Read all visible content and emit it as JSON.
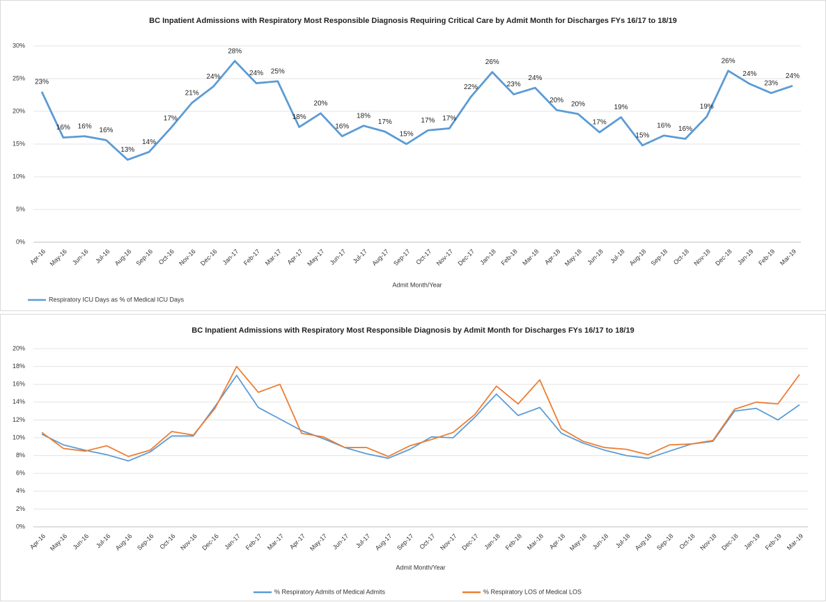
{
  "chart_data": [
    {
      "type": "line",
      "title": "BC Inpatient Admissions with Respiratory Most Responsible Diagnosis Requiring Critical Care by Admit Month for Discharges FYs 16/17 to 18/19",
      "x_label": "Admit Month/Year",
      "categories": [
        "Apr-16",
        "May-16",
        "Jun-16",
        "Jul-16",
        "Aug-16",
        "Sep-16",
        "Oct-16",
        "Nov-16",
        "Dec-16",
        "Jan-17",
        "Feb-17",
        "Mar-17",
        "Apr-17",
        "May-17",
        "Jun-17",
        "Jul-17",
        "Aug-17",
        "Sep-17",
        "Oct-17",
        "Nov-17",
        "Dec-17",
        "Jan-18",
        "Feb-18",
        "Mar-18",
        "Apr-18",
        "May-18",
        "Jun-18",
        "Jul-18",
        "Aug-18",
        "Sep-18",
        "Oct-18",
        "Nov-18",
        "Dec-18",
        "Jan-19",
        "Feb-19",
        "Mar-19"
      ],
      "series": [
        {
          "name": "Respiratory ICU Days as % of Medical ICU Days",
          "color": "#5b9bd5",
          "values": [
            23.0,
            16.0,
            16.2,
            15.6,
            12.6,
            13.8,
            17.4,
            21.3,
            23.8,
            27.7,
            24.3,
            24.6,
            17.6,
            19.7,
            16.2,
            17.8,
            16.9,
            15.0,
            17.1,
            17.4,
            22.2,
            26.0,
            22.6,
            23.6,
            20.2,
            19.6,
            16.8,
            19.1,
            14.8,
            16.3,
            15.8,
            19.2,
            26.2,
            24.2,
            22.8,
            23.9
          ],
          "value_labels": [
            "23%",
            "16%",
            "16%",
            "16%",
            "13%",
            "14%",
            "17%",
            "21%",
            "24%",
            "28%",
            "24%",
            "25%",
            "18%",
            "20%",
            "16%",
            "18%",
            "17%",
            "15%",
            "17%",
            "17%",
            "22%",
            "26%",
            "23%",
            "24%",
            "20%",
            "20%",
            "17%",
            "19%",
            "15%",
            "16%",
            "16%",
            "19%",
            "26%",
            "24%",
            "23%",
            "24%"
          ]
        }
      ],
      "ylim": [
        0,
        30
      ],
      "yticks": [
        {
          "value": 0,
          "label": "0%"
        },
        {
          "value": 5,
          "label": "5%"
        },
        {
          "value": 10,
          "label": "10%"
        },
        {
          "value": 15,
          "label": "15%"
        },
        {
          "value": 20,
          "label": "20%"
        },
        {
          "value": 25,
          "label": "25%"
        },
        {
          "value": 30,
          "label": "30%"
        }
      ],
      "grid": true,
      "legend": "bottom-left"
    },
    {
      "type": "line",
      "title": "BC Inpatient Admissions with Respiratory Most Responsible Diagnosis by Admit Month for Discharges FYs 16/17 to 18/19",
      "x_label": "Admit Month/Year",
      "categories": [
        "Apr-16",
        "May-16",
        "Jun-16",
        "Jul-16",
        "Aug-16",
        "Sep-16",
        "Oct-16",
        "Nov-16",
        "Dec-16",
        "Jan-17",
        "Feb-17",
        "Mar-17",
        "Apr-17",
        "May-17",
        "Jun-17",
        "Jul-17",
        "Aug-17",
        "Sep-17",
        "Oct-17",
        "Nov-17",
        "Dec-17",
        "Jan-18",
        "Feb-18",
        "Mar-18",
        "Apr-18",
        "May-18",
        "Jun-18",
        "Jul-18",
        "Aug-18",
        "Sep-18",
        "Oct-18",
        "Nov-18",
        "Dec-18",
        "Jan-19",
        "Feb-19",
        "Mar-19"
      ],
      "series": [
        {
          "name": "% Respiratory Admits of Medical Admits",
          "color": "#5b9bd5",
          "values": [
            10.4,
            9.2,
            8.6,
            8.1,
            7.4,
            8.4,
            10.2,
            10.2,
            13.5,
            17.0,
            13.4,
            12.1,
            10.8,
            9.9,
            8.9,
            8.2,
            7.7,
            8.7,
            10.1,
            10.0,
            12.3,
            14.9,
            12.5,
            13.4,
            10.5,
            9.4,
            8.6,
            8.0,
            7.7,
            8.5,
            9.3,
            9.6,
            13.0,
            13.3,
            12.0,
            13.7
          ]
        },
        {
          "name": "% Respiratory LOS of Medical LOS",
          "color": "#ed7d31",
          "values": [
            10.6,
            8.8,
            8.5,
            9.1,
            7.9,
            8.6,
            10.7,
            10.3,
            13.3,
            18.0,
            15.1,
            16.0,
            10.5,
            10.1,
            8.9,
            8.9,
            7.9,
            9.1,
            9.8,
            10.6,
            12.6,
            15.8,
            13.8,
            16.5,
            11.0,
            9.6,
            8.9,
            8.7,
            8.1,
            9.2,
            9.3,
            9.7,
            13.2,
            14.0,
            13.8,
            17.1
          ]
        }
      ],
      "ylim": [
        0,
        20
      ],
      "yticks": [
        {
          "value": 0,
          "label": "0%"
        },
        {
          "value": 2,
          "label": "2%"
        },
        {
          "value": 4,
          "label": "4%"
        },
        {
          "value": 6,
          "label": "6%"
        },
        {
          "value": 8,
          "label": "8%"
        },
        {
          "value": 10,
          "label": "10%"
        },
        {
          "value": 12,
          "label": "12%"
        },
        {
          "value": 14,
          "label": "14%"
        },
        {
          "value": 16,
          "label": "16%"
        },
        {
          "value": 18,
          "label": "18%"
        },
        {
          "value": 20,
          "label": "20%"
        }
      ],
      "grid": true,
      "legend": "bottom"
    }
  ]
}
